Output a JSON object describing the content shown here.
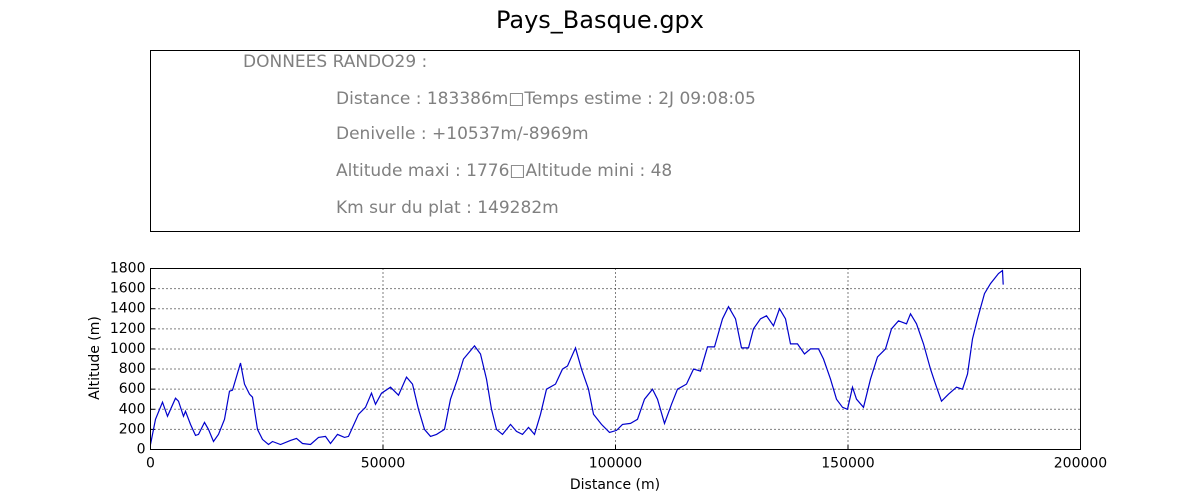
{
  "chart_data": {
    "type": "line",
    "title": "Pays_Basque.gpx",
    "info_lines": [
      "DONNEES RANDO29  :",
      "Distance : 183386m□Temps estime : 2J 09:08:05",
      "Denivelle : +10537m/-8969m",
      "Altitude maxi : 1776□Altitude mini : 48",
      "Km sur du plat : 149282m"
    ],
    "xlabel": "Distance (m)",
    "ylabel": "Altitude (m)",
    "xlim": [
      0,
      200000
    ],
    "ylim": [
      0,
      1800
    ],
    "xticks": [
      0,
      50000,
      100000,
      150000,
      200000
    ],
    "yticks": [
      0,
      200,
      400,
      600,
      800,
      1000,
      1200,
      1400,
      1600,
      1800
    ],
    "grid": true,
    "series": [
      {
        "color": "#0000cc",
        "x": [
          0,
          1075,
          2581,
          3656,
          5376,
          6021,
          7097,
          7527,
          8602,
          9677,
          10322,
          11613,
          12473,
          13548,
          14624,
          15914,
          16989,
          17634,
          19355,
          20215,
          21290,
          21935,
          23011,
          24086,
          25376,
          26237,
          27957,
          30108,
          31398,
          32688,
          34409,
          36129,
          37634,
          38710,
          40215,
          41720,
          42581,
          44731,
          46237,
          47527,
          48387,
          49677,
          51613,
          53333,
          55054,
          56344,
          57634,
          58925,
          60215,
          61505,
          63226,
          64516,
          66022,
          67312,
          69677,
          70968,
          72258,
          73333,
          74409,
          75699,
          77419,
          78710,
          80000,
          81290,
          82581,
          83871,
          85161,
          87097,
          88602,
          89677,
          91398,
          92688,
          94194,
          95269,
          96989,
          98710,
          100215,
          101505,
          103226,
          104731,
          106237,
          107957,
          109032,
          110538,
          112043,
          113333,
          115269,
          116774,
          118280,
          119785,
          121290,
          123011,
          124301,
          125806,
          127097,
          128602,
          129677,
          131183,
          132473,
          133978,
          135269,
          136559,
          137634,
          139140,
          140645,
          141935,
          143656,
          144731,
          146237,
          147527,
          148817,
          149892,
          150968,
          151828,
          153333,
          154839,
          156344,
          158065,
          159355,
          160860,
          162581,
          163441,
          164731,
          166237,
          167742,
          168817,
          170108,
          171613,
          173333,
          174624,
          175699,
          176774,
          177849,
          179355,
          180645,
          182366,
          183226,
          183386
        ],
        "values": [
          50,
          300,
          470,
          330,
          510,
          480,
          330,
          380,
          250,
          140,
          150,
          270,
          200,
          80,
          150,
          300,
          580,
          590,
          860,
          650,
          550,
          520,
          200,
          100,
          50,
          80,
          50,
          90,
          110,
          60,
          50,
          120,
          130,
          60,
          150,
          120,
          130,
          350,
          420,
          560,
          450,
          560,
          620,
          540,
          720,
          650,
          400,
          200,
          130,
          150,
          200,
          500,
          700,
          900,
          1030,
          950,
          700,
          400,
          200,
          150,
          250,
          180,
          150,
          220,
          150,
          350,
          600,
          650,
          800,
          830,
          1010,
          800,
          600,
          350,
          250,
          170,
          190,
          250,
          260,
          300,
          500,
          600,
          500,
          260,
          450,
          600,
          650,
          800,
          780,
          1020,
          1020,
          1300,
          1420,
          1300,
          1010,
          1010,
          1200,
          1300,
          1330,
          1230,
          1400,
          1300,
          1050,
          1050,
          950,
          1000,
          1000,
          900,
          700,
          500,
          420,
          400,
          620,
          500,
          420,
          700,
          920,
          1000,
          1200,
          1280,
          1250,
          1350,
          1250,
          1050,
          800,
          650,
          480,
          550,
          620,
          600,
          750,
          1100,
          1300,
          1550,
          1650,
          1750,
          1780,
          1640
        ]
      }
    ]
  }
}
